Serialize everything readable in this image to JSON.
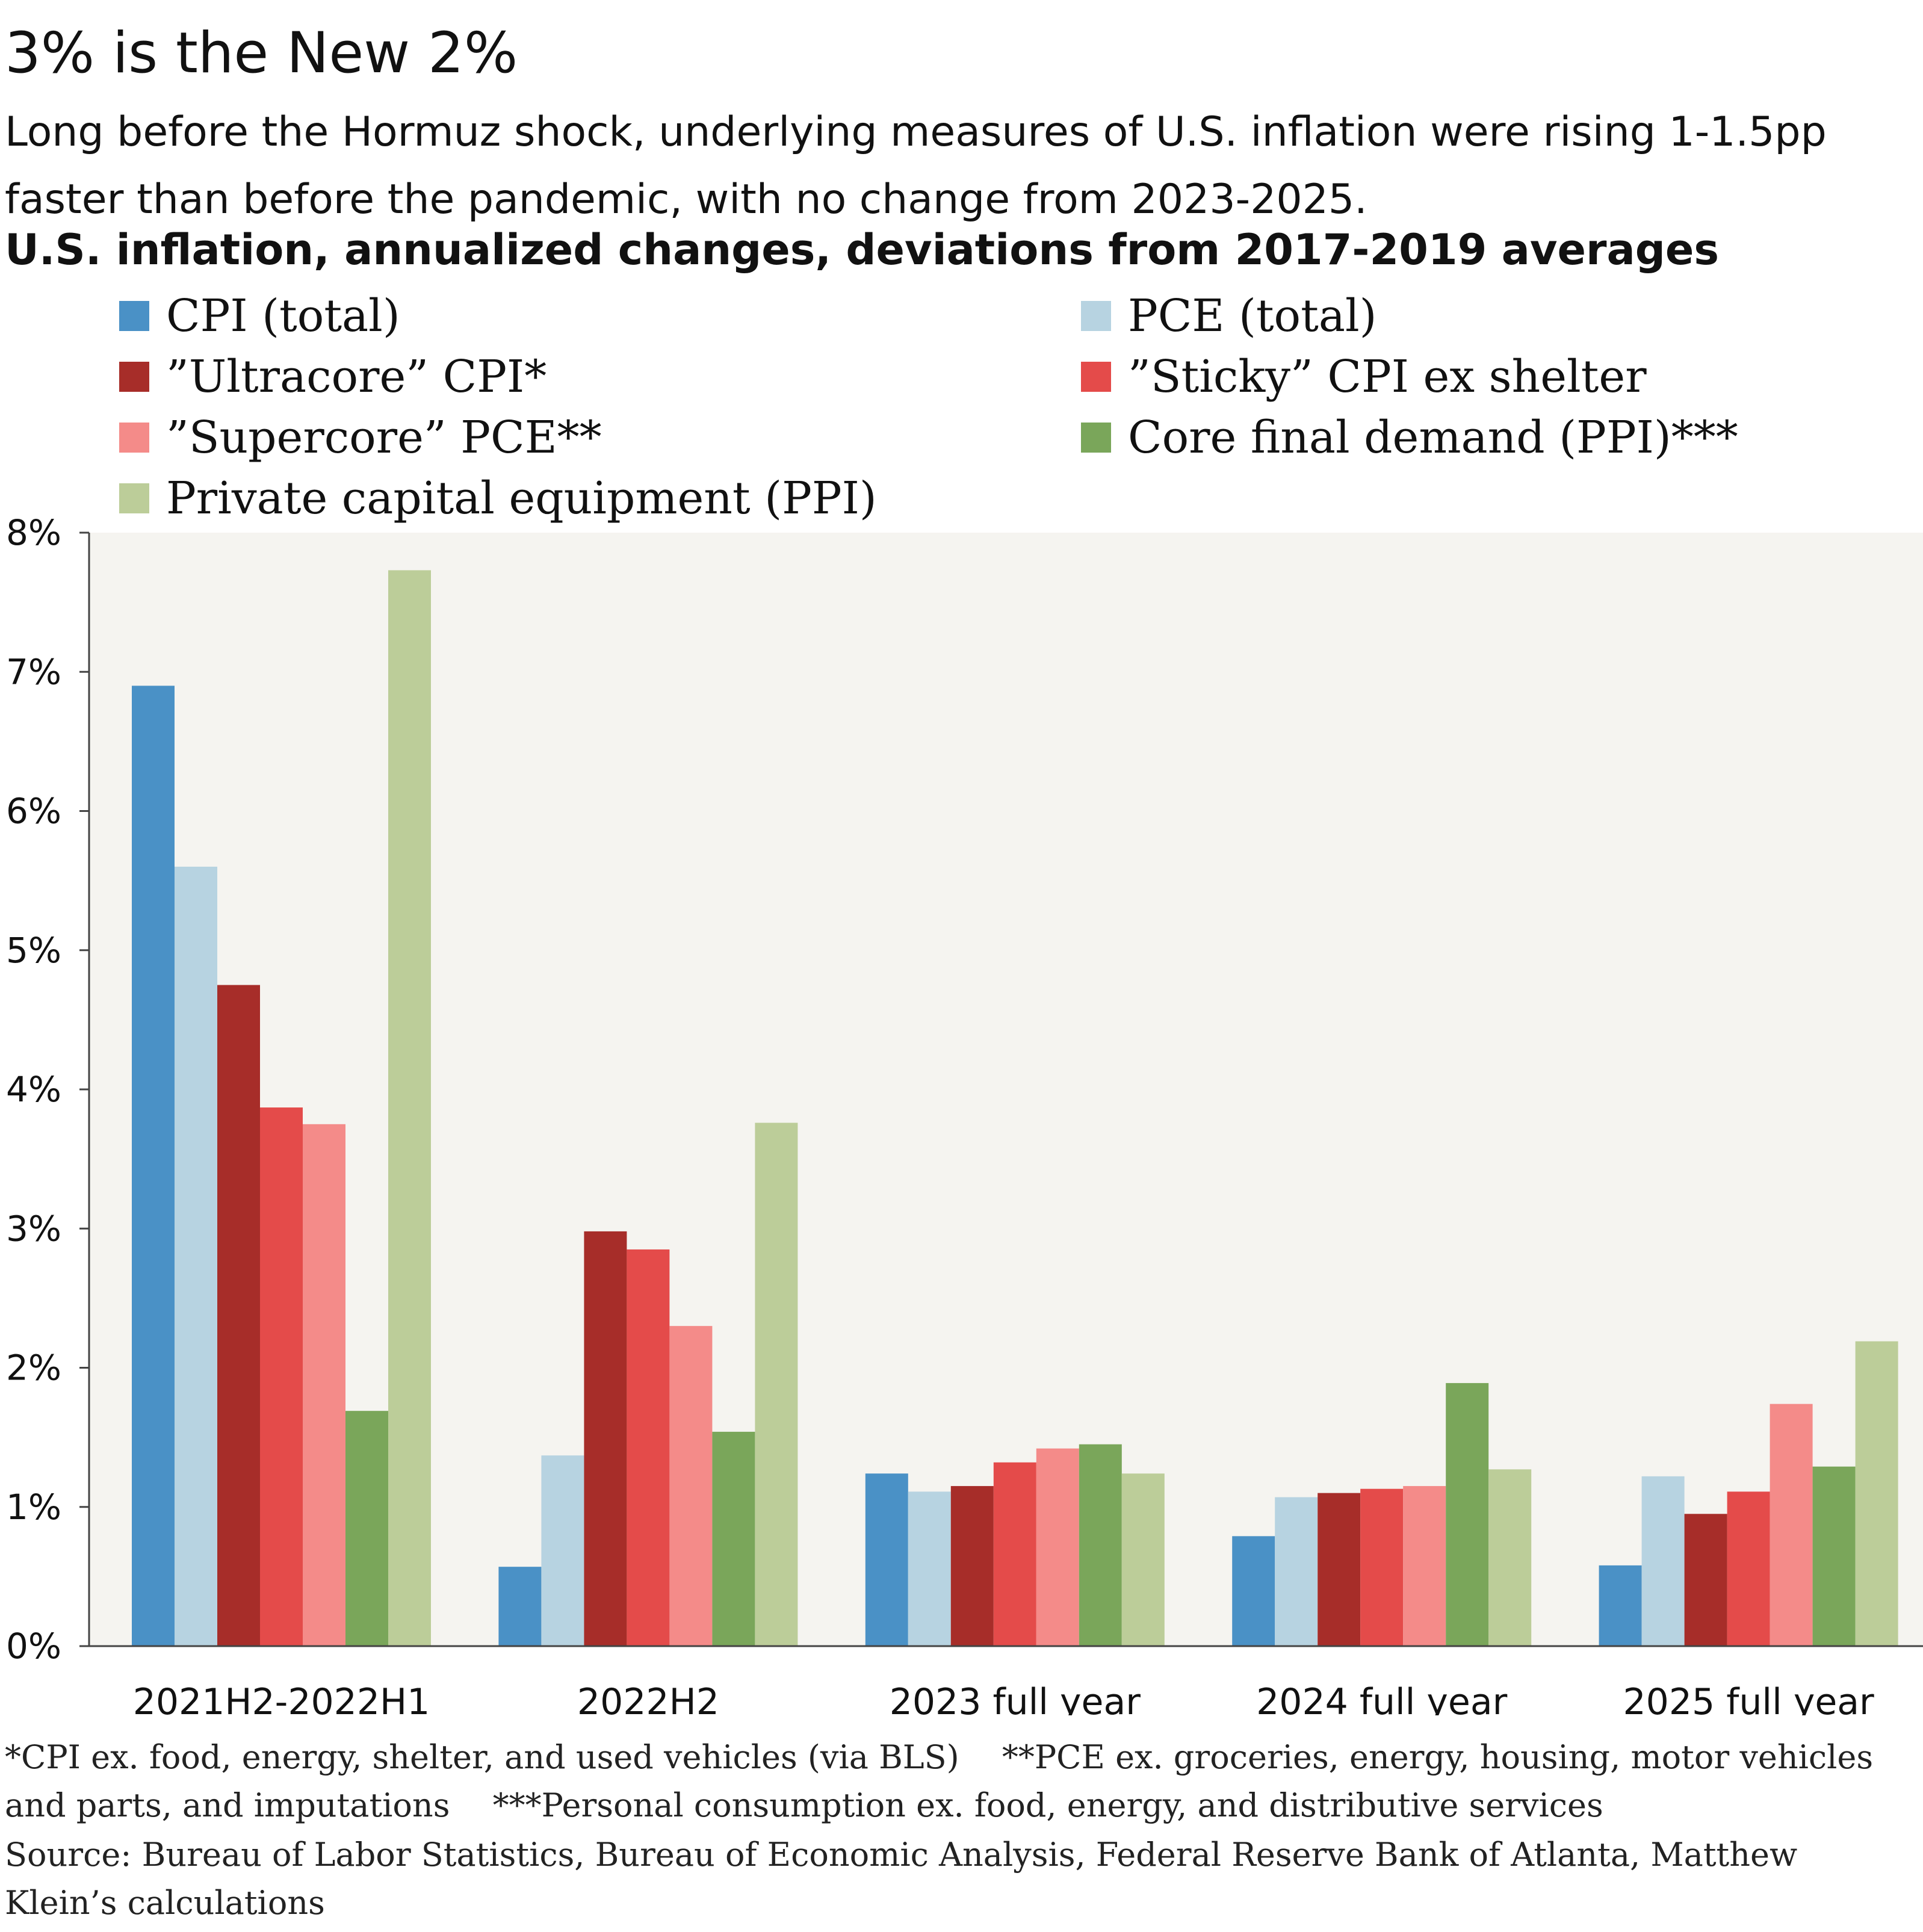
{
  "header": {
    "title": "3% is the New 2%",
    "subtitle": "Long before the Hormuz shock, underlying measures of U.S. inflation were rising 1-1.5pp faster than before the pandemic, with no change from 2023-2025.",
    "chart_title": "U.S. inflation, annualized changes, deviations from 2017-2019 averages"
  },
  "chart_data": {
    "type": "bar",
    "title": "U.S. inflation, annualized changes, deviations from 2017-2019 averages",
    "xlabel": "",
    "ylabel": "",
    "ylim": [
      0,
      8
    ],
    "yticks": [
      "0%",
      "1%",
      "2%",
      "3%",
      "4%",
      "5%",
      "6%",
      "7%",
      "8%"
    ],
    "categories": [
      "2021H2-2022H1",
      "2022H2",
      "2023 full year",
      "2024 full year",
      "2025 full year"
    ],
    "series": [
      {
        "name": "CPI (total)",
        "color": "#4A91C6",
        "values": [
          6.9,
          0.57,
          1.24,
          0.79,
          0.58
        ]
      },
      {
        "name": "PCE (total)",
        "color": "#B7D3E1",
        "values": [
          5.6,
          1.37,
          1.11,
          1.07,
          1.22
        ]
      },
      {
        "name": "”Ultracore” CPI*",
        "color": "#A72D29",
        "values": [
          4.75,
          2.98,
          1.15,
          1.1,
          0.95
        ]
      },
      {
        "name": "”Sticky” CPI ex shelter",
        "color": "#E44B4A",
        "values": [
          3.87,
          2.85,
          1.32,
          1.13,
          1.11
        ]
      },
      {
        "name": "”Supercore” PCE**",
        "color": "#F48B89",
        "values": [
          3.75,
          2.3,
          1.42,
          1.15,
          1.74
        ]
      },
      {
        "name": "Core final demand (PPI)***",
        "color": "#7AA65A",
        "values": [
          1.69,
          1.54,
          1.45,
          1.89,
          1.29
        ]
      },
      {
        "name": "Private capital equipment (PPI)",
        "color": "#BCCD99",
        "values": [
          7.73,
          3.76,
          1.24,
          1.27,
          2.19
        ]
      }
    ],
    "legend": "top, two columns"
  },
  "notes": {
    "footnote": "*CPI ex. food, energy, shelter, and used vehicles (via BLS)  **PCE ex. groceries, energy, housing, motor vehicles and parts, and imputations  ***Personal consumption ex. food, energy, and distributive services",
    "source": "Source: Bureau of Labor Statistics, Bureau of Economic Analysis, Federal Reserve Bank of Atlanta, Matthew Klein’s calculations"
  }
}
